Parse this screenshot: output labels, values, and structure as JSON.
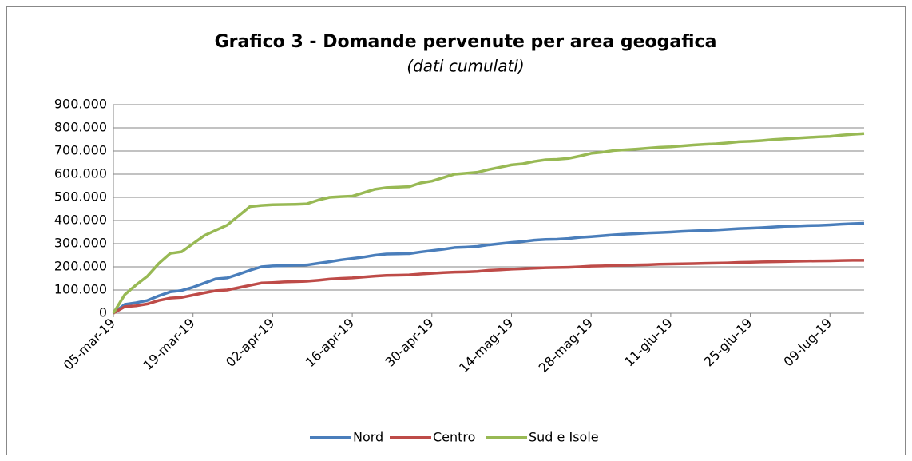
{
  "chart_data": {
    "type": "line",
    "title": "Grafico 3 - Domande pervenute per area geogafica",
    "subtitle": "(dati cumulati)",
    "legend": "bottom",
    "grid": true,
    "categories": [
      "05-mar-19",
      null,
      null,
      null,
      null,
      null,
      null,
      "19-mar-19",
      null,
      null,
      null,
      null,
      null,
      null,
      "02-apr-19",
      null,
      null,
      null,
      null,
      null,
      null,
      "16-apr-19",
      null,
      null,
      null,
      null,
      null,
      null,
      "30-apr-19",
      null,
      null,
      null,
      null,
      null,
      null,
      "14-mag-19",
      null,
      null,
      null,
      null,
      null,
      null,
      "28-mag-19",
      null,
      null,
      null,
      null,
      null,
      null,
      "11-giu-19",
      null,
      null,
      null,
      null,
      null,
      null,
      "25-giu-19",
      null,
      null,
      null,
      null,
      null,
      null,
      "09-lug-19",
      null,
      null,
      null
    ],
    "ylim": [
      0,
      900000
    ],
    "yticks": [
      0,
      {
        "value": 100000,
        "label": "100.000"
      },
      {
        "value": 200000,
        "label": "200.000"
      },
      {
        "value": 300000,
        "label": "300.000"
      },
      {
        "value": 400000,
        "label": "400.000"
      },
      {
        "value": 500000,
        "label": "500.000"
      },
      {
        "value": 600000,
        "label": "600.000"
      },
      {
        "value": 700000,
        "label": "700.000"
      },
      {
        "value": 800000,
        "label": "800.000"
      },
      {
        "value": 900000,
        "label": "900.000"
      }
    ],
    "series": [
      {
        "name": "Nord",
        "color": "#4a7ebb",
        "values": [
          0,
          38000,
          45000,
          55000,
          75000,
          92000,
          98000,
          112000,
          130000,
          148000,
          152000,
          168000,
          185000,
          200000,
          204000,
          205000,
          207000,
          208000,
          215000,
          222000,
          230000,
          236000,
          242000,
          250000,
          255000,
          256000,
          257000,
          264000,
          270000,
          276000,
          283000,
          285000,
          288000,
          295000,
          300000,
          305000,
          309000,
          315000,
          318000,
          319000,
          322000,
          327000,
          330000,
          334000,
          338000,
          341000,
          343000,
          346000,
          348000,
          350000,
          353000,
          355000,
          357000,
          359000,
          362000,
          365000,
          367000,
          369000,
          372000,
          375000,
          376000,
          378000,
          379000,
          381000,
          384000,
          386000,
          388000
        ]
      },
      {
        "name": "Centro",
        "color": "#be4b48",
        "values": [
          0,
          28000,
          32000,
          40000,
          55000,
          65000,
          68000,
          78000,
          88000,
          97000,
          100000,
          110000,
          120000,
          130000,
          132000,
          135000,
          136000,
          138000,
          142000,
          147000,
          150000,
          152000,
          156000,
          160000,
          163000,
          164000,
          165000,
          169000,
          172000,
          175000,
          177000,
          178000,
          180000,
          185000,
          187000,
          190000,
          192000,
          194000,
          196000,
          197000,
          198000,
          200000,
          203000,
          204000,
          206000,
          207000,
          208000,
          209000,
          211000,
          212000,
          213000,
          214000,
          215000,
          216000,
          217000,
          219000,
          220000,
          221000,
          222000,
          223000,
          224000,
          225000,
          225500,
          226000,
          227000,
          228000,
          228000
        ]
      },
      {
        "name": "Sud e Isole",
        "color": "#98b954",
        "values": [
          0,
          80000,
          122000,
          160000,
          215000,
          258000,
          265000,
          300000,
          335000,
          358000,
          380000,
          420000,
          460000,
          465000,
          468000,
          469000,
          470000,
          472000,
          488000,
          500000,
          503000,
          505000,
          520000,
          535000,
          542000,
          544000,
          546000,
          562000,
          570000,
          585000,
          600000,
          604000,
          608000,
          620000,
          630000,
          640000,
          645000,
          655000,
          662000,
          664000,
          668000,
          678000,
          690000,
          695000,
          702000,
          705000,
          708000,
          712000,
          716000,
          718000,
          722000,
          726000,
          729000,
          731000,
          735000,
          740000,
          742000,
          745000,
          749000,
          752000,
          755000,
          758000,
          761000,
          763000,
          768000,
          772000,
          775000
        ]
      }
    ]
  }
}
